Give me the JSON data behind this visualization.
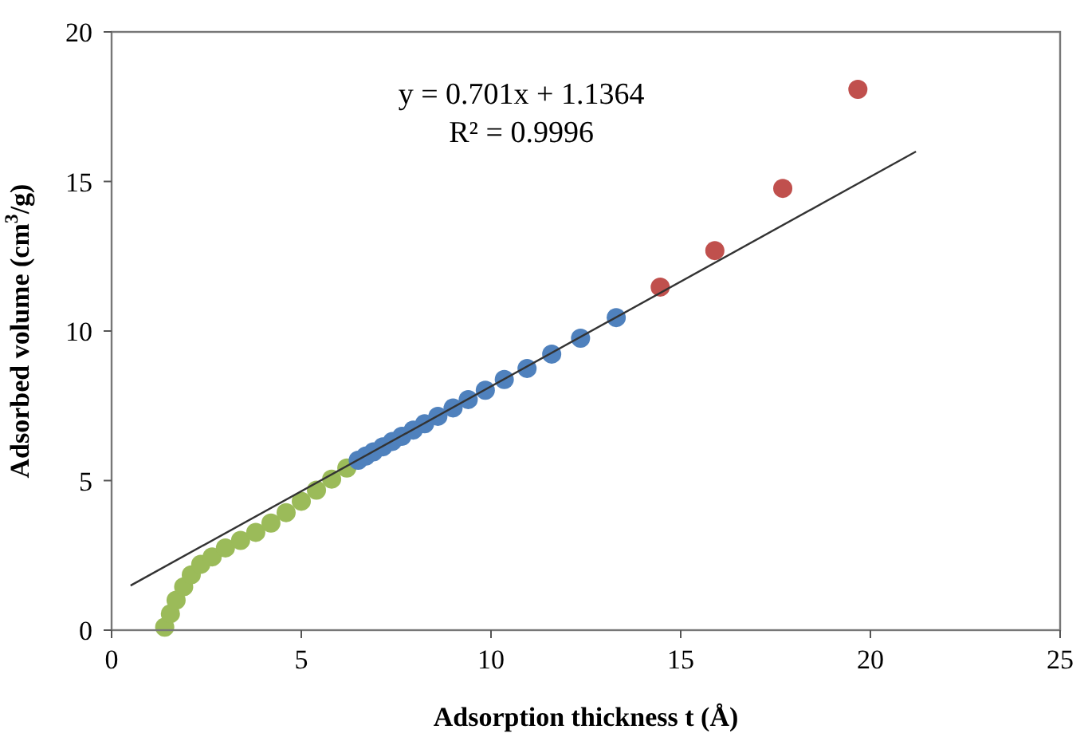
{
  "chart_data": {
    "type": "scatter",
    "xlabel": "Adsorption thickness t (Å)",
    "ylabel": "Adsorbed volume (cm$^{3}$/g)",
    "xlim": [
      0,
      25
    ],
    "xticks": [
      0,
      5,
      10,
      15,
      20,
      25
    ],
    "ylim": [
      0,
      20
    ],
    "yticks": [
      0,
      5,
      10,
      15,
      20
    ],
    "grid": false,
    "marker": "circle",
    "annotations": [
      "y = 0.701x + 1.1364",
      "R² = 0.9996"
    ],
    "series": [
      {
        "color": "#9bbb59",
        "x": [
          1.4,
          1.55,
          1.7,
          1.9,
          2.1,
          2.35,
          2.65,
          3.0,
          3.4,
          3.8,
          4.2,
          4.6,
          5.0,
          5.4,
          5.8,
          6.2
        ],
        "values": [
          0.1,
          0.55,
          1.0,
          1.45,
          1.85,
          2.2,
          2.45,
          2.75,
          3.0,
          3.27,
          3.58,
          3.93,
          4.31,
          4.68,
          5.05,
          5.42
        ]
      },
      {
        "color": "#4f81bd",
        "x": [
          6.5,
          6.7,
          6.9,
          7.15,
          7.4,
          7.65,
          7.95,
          8.25,
          8.6,
          9.0,
          9.4,
          9.85,
          10.35,
          10.95,
          11.6,
          12.36,
          13.3
        ],
        "values": [
          5.68,
          5.82,
          5.96,
          6.13,
          6.31,
          6.48,
          6.69,
          6.9,
          7.15,
          7.43,
          7.71,
          8.02,
          8.38,
          8.75,
          9.23,
          9.76,
          10.45
        ]
      },
      {
        "color": "#c0504d",
        "x": [
          14.46,
          15.9,
          17.69,
          19.67
        ],
        "values": [
          11.47,
          12.69,
          14.77,
          18.08
        ]
      },
      {
        "type": "line",
        "color": "#333333",
        "marker": "none",
        "line_style": "solid",
        "x": [
          0.5,
          21.2
        ],
        "values": [
          1.49,
          16.0
        ]
      }
    ]
  }
}
